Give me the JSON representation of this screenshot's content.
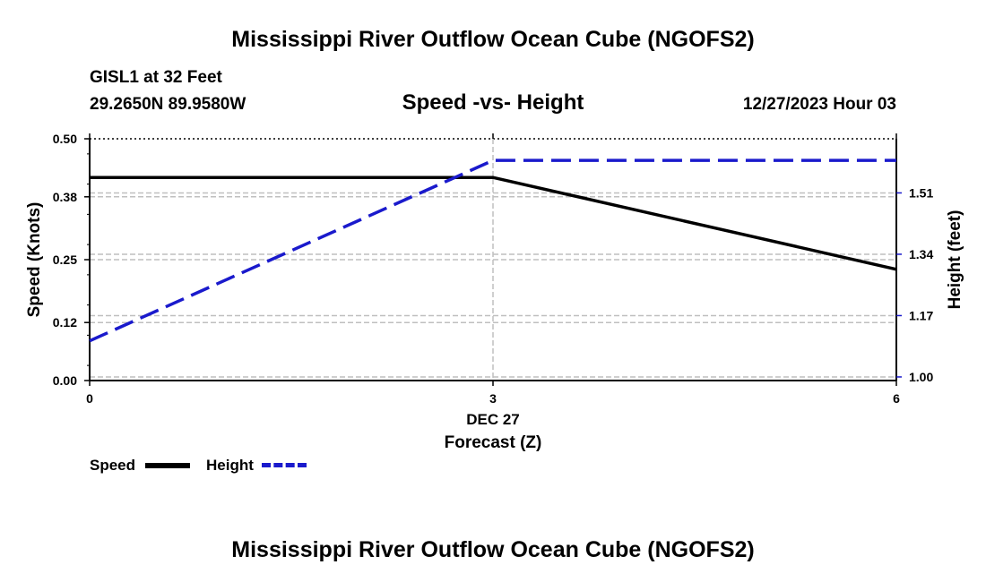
{
  "header": {
    "title": "Mississippi River Outflow Ocean Cube (NGOFS2)",
    "station": "GISL1 at 32 Feet",
    "coords": "29.2650N  89.9580W",
    "chart_title": "Speed -vs- Height",
    "timestamp": "12/27/2023 Hour 03"
  },
  "footer": {
    "title": "Mississippi River Outflow Ocean Cube (NGOFS2)"
  },
  "legend": {
    "speed_label": "Speed",
    "height_label": "Height"
  },
  "colors": {
    "speed": "#000000",
    "height": "#1a1acc",
    "grid": "#bfbfbf"
  },
  "chart_data": {
    "type": "line",
    "title": "Speed -vs- Height",
    "xlabel": "Forecast (Z)",
    "x_date_label": "DEC 27",
    "ylabel": "Speed (Knots)",
    "y2label": "Height (feet)",
    "x": [
      0,
      3,
      6
    ],
    "xlim": [
      0,
      6
    ],
    "xticks": [
      "0",
      "3",
      "6"
    ],
    "ylim": [
      0,
      0.5
    ],
    "yticks": [
      0.0,
      0.12,
      0.25,
      0.38,
      0.5
    ],
    "ytick_labels": [
      "0.00",
      "0.12",
      "0.25",
      "0.38",
      "0.50"
    ],
    "y2lim": [
      0.99,
      1.66
    ],
    "y2ticks": [
      1.0,
      1.17,
      1.34,
      1.51
    ],
    "y2tick_labels": [
      "1.00",
      "1.17",
      "1.34",
      "1.51"
    ],
    "series": [
      {
        "name": "Speed",
        "axis": "left",
        "values": [
          0.42,
          0.42,
          0.23
        ]
      },
      {
        "name": "Height",
        "axis": "right",
        "values": [
          1.1,
          1.6,
          1.6
        ]
      }
    ]
  }
}
